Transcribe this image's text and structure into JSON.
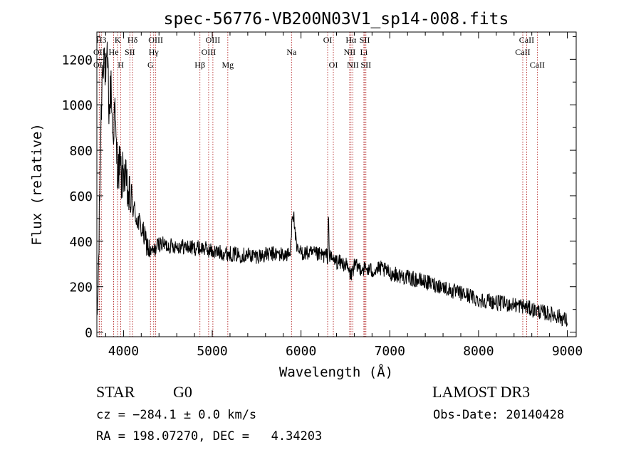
{
  "chart_data": {
    "type": "line",
    "title": "spec-56776-VB200N03V1_sp14-008.fits",
    "xlabel": "Wavelength (Å)",
    "ylabel": "Flux (relative)",
    "xlim": [
      3700,
      9100
    ],
    "ylim": [
      -20,
      1320
    ],
    "xticks": [
      4000,
      5000,
      6000,
      7000,
      8000,
      9000
    ],
    "yticks": [
      0,
      200,
      400,
      600,
      800,
      1000,
      1200
    ],
    "grid": false,
    "line_color": "#000000",
    "marker_color": "#b22222",
    "spectrum_anchors": [
      [
        3700,
        20
      ],
      [
        3720,
        300
      ],
      [
        3740,
        800
      ],
      [
        3760,
        1150
      ],
      [
        3780,
        1250
      ],
      [
        3800,
        1100
      ],
      [
        3820,
        1200
      ],
      [
        3840,
        950
      ],
      [
        3860,
        1100
      ],
      [
        3880,
        850
      ],
      [
        3900,
        980
      ],
      [
        3920,
        800
      ],
      [
        3940,
        700
      ],
      [
        3960,
        750
      ],
      [
        3980,
        650
      ],
      [
        4000,
        720
      ],
      [
        4050,
        600
      ],
      [
        4100,
        560
      ],
      [
        4150,
        500
      ],
      [
        4200,
        460
      ],
      [
        4250,
        400
      ],
      [
        4300,
        350
      ],
      [
        4350,
        360
      ],
      [
        4400,
        390
      ],
      [
        4500,
        380
      ],
      [
        4600,
        380
      ],
      [
        4700,
        375
      ],
      [
        4800,
        370
      ],
      [
        4900,
        370
      ],
      [
        5000,
        355
      ],
      [
        5100,
        350
      ],
      [
        5200,
        345
      ],
      [
        5300,
        340
      ],
      [
        5400,
        340
      ],
      [
        5500,
        335
      ],
      [
        5600,
        340
      ],
      [
        5700,
        345
      ],
      [
        5800,
        340
      ],
      [
        5880,
        340
      ],
      [
        5900,
        530
      ],
      [
        5920,
        500
      ],
      [
        5950,
        360
      ],
      [
        6000,
        350
      ],
      [
        6100,
        345
      ],
      [
        6200,
        340
      ],
      [
        6300,
        335
      ],
      [
        6310,
        540
      ],
      [
        6320,
        330
      ],
      [
        6400,
        310
      ],
      [
        6500,
        300
      ],
      [
        6560,
        250
      ],
      [
        6600,
        290
      ],
      [
        6700,
        280
      ],
      [
        6800,
        270
      ],
      [
        6900,
        280
      ],
      [
        7000,
        260
      ],
      [
        7100,
        250
      ],
      [
        7200,
        240
      ],
      [
        7300,
        230
      ],
      [
        7400,
        220
      ],
      [
        7500,
        210
      ],
      [
        7600,
        200
      ],
      [
        7700,
        180
      ],
      [
        7800,
        170
      ],
      [
        7900,
        160
      ],
      [
        8000,
        140
      ],
      [
        8100,
        140
      ],
      [
        8200,
        130
      ],
      [
        8300,
        125
      ],
      [
        8400,
        120
      ],
      [
        8500,
        115
      ],
      [
        8600,
        100
      ],
      [
        8700,
        90
      ],
      [
        8800,
        80
      ],
      [
        8900,
        70
      ],
      [
        9000,
        50
      ]
    ],
    "spectrum_noise_amplitude": 35,
    "line_markers": [
      {
        "label": "H3",
        "wavelength": 3750,
        "row": 0
      },
      {
        "label": "OII",
        "wavelength": 3727,
        "row": 1
      },
      {
        "label": "OII",
        "wavelength": 3727,
        "row": 2
      },
      {
        "label": "He",
        "wavelength": 3889,
        "row": 1
      },
      {
        "label": "K",
        "wavelength": 3934,
        "row": 0
      },
      {
        "label": "SII",
        "wavelength": 4072,
        "row": 1
      },
      {
        "label": "H",
        "wavelength": 3969,
        "row": 2
      },
      {
        "label": "Hδ",
        "wavelength": 4102,
        "row": 0
      },
      {
        "label": "OIII",
        "wavelength": 4363,
        "row": 0
      },
      {
        "label": "Hγ",
        "wavelength": 4340,
        "row": 1
      },
      {
        "label": "G",
        "wavelength": 4304,
        "row": 2
      },
      {
        "label": "OIII",
        "wavelength": 5007,
        "row": 0
      },
      {
        "label": "OIII",
        "wavelength": 4959,
        "row": 1
      },
      {
        "label": "Hβ",
        "wavelength": 4861,
        "row": 2
      },
      {
        "label": "Mg",
        "wavelength": 5175,
        "row": 2
      },
      {
        "label": "Na",
        "wavelength": 5893,
        "row": 1
      },
      {
        "label": "OI",
        "wavelength": 6300,
        "row": 0
      },
      {
        "label": "OI",
        "wavelength": 6364,
        "row": 2
      },
      {
        "label": "Hα",
        "wavelength": 6563,
        "row": 0
      },
      {
        "label": "SII",
        "wavelength": 6717,
        "row": 0
      },
      {
        "label": "NII",
        "wavelength": 6548,
        "row": 1
      },
      {
        "label": "Li",
        "wavelength": 6708,
        "row": 1
      },
      {
        "label": "NII",
        "wavelength": 6584,
        "row": 2
      },
      {
        "label": "SII",
        "wavelength": 6731,
        "row": 2
      },
      {
        "label": "CaII",
        "wavelength": 8542,
        "row": 0
      },
      {
        "label": "CaII",
        "wavelength": 8498,
        "row": 1
      },
      {
        "label": "CaII",
        "wavelength": 8662,
        "row": 2
      }
    ]
  },
  "info": {
    "object_type": "STAR",
    "subclass": "G0",
    "survey": "LAMOST DR3",
    "cz": "cz = −284.1 ± 0.0 km/s",
    "obs_date": "Obs-Date: 20140428",
    "radec": "RA = 198.07270, DEC =   4.34203"
  }
}
